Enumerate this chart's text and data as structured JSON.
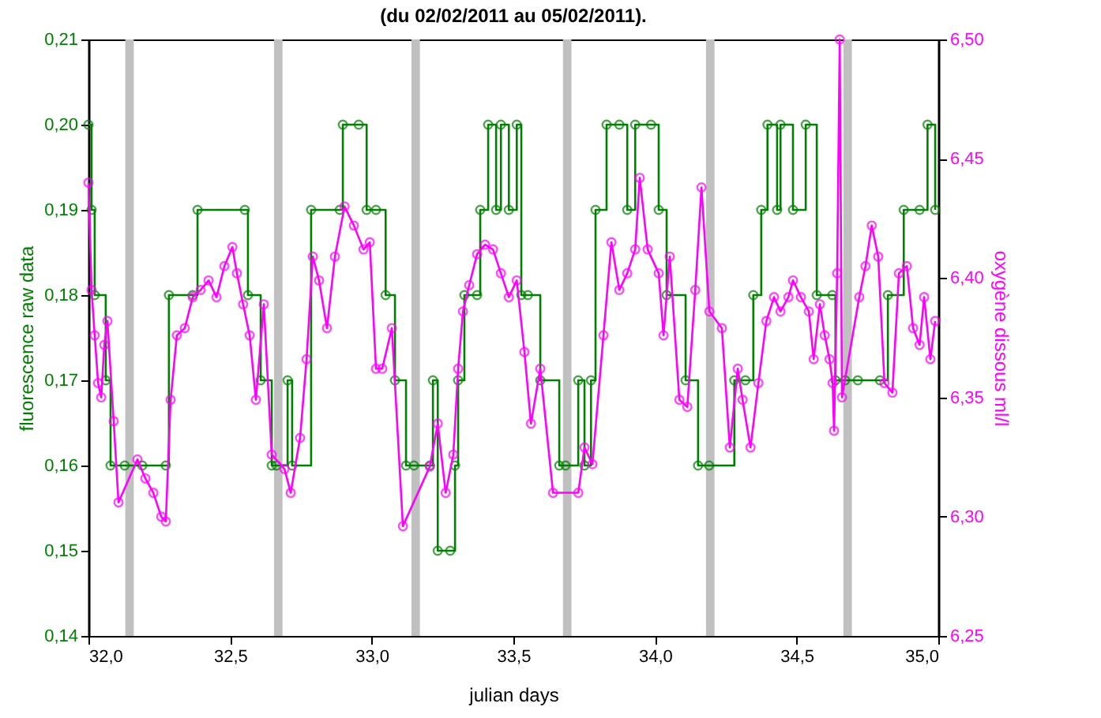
{
  "chart_data": {
    "type": "line",
    "title": "(du 02/02/2011 au 05/02/2011).",
    "xlabel": "julian days",
    "ylabel": "fluorescence raw data",
    "y2label": "oxygène dissous ml/l",
    "xlim": [
      32,
      35
    ],
    "xticks": [
      {
        "value": 32,
        "label": "32,0"
      },
      {
        "value": 32.5,
        "label": "32,5"
      },
      {
        "value": 33,
        "label": "33,0"
      },
      {
        "value": 33.5,
        "label": "33,5"
      },
      {
        "value": 34,
        "label": "34,0"
      },
      {
        "value": 34.5,
        "label": "34,5"
      },
      {
        "value": 35,
        "label": "35,0"
      }
    ],
    "ylim": [
      0.14,
      0.21
    ],
    "yticks": [
      {
        "value": 0.14,
        "label": "0,14"
      },
      {
        "value": 0.15,
        "label": "0,15"
      },
      {
        "value": 0.16,
        "label": "0,16"
      },
      {
        "value": 0.17,
        "label": "0,17"
      },
      {
        "value": 0.18,
        "label": "0,18"
      },
      {
        "value": 0.19,
        "label": "0,19"
      },
      {
        "value": 0.2,
        "label": "0,20"
      },
      {
        "value": 0.21,
        "label": "0,21"
      }
    ],
    "y2lim": [
      6.25,
      6.5
    ],
    "y2ticks": [
      {
        "value": 6.25,
        "label": "6,25"
      },
      {
        "value": 6.3,
        "label": "6,30"
      },
      {
        "value": 6.35,
        "label": "6,35"
      },
      {
        "value": 6.4,
        "label": "6,40"
      },
      {
        "value": 6.45,
        "label": "6,45"
      },
      {
        "value": 6.5,
        "label": "6,50"
      }
    ],
    "grid": false,
    "marker": "circle",
    "line_style": "solid",
    "bands": [
      {
        "axis": "x",
        "from": 32.13,
        "to": 32.16,
        "color": "#c0c0c0"
      },
      {
        "axis": "x",
        "from": 32.655,
        "to": 32.685,
        "color": "#c0c0c0"
      },
      {
        "axis": "x",
        "from": 33.14,
        "to": 33.17,
        "color": "#c0c0c0"
      },
      {
        "axis": "x",
        "from": 33.675,
        "to": 33.705,
        "color": "#c0c0c0"
      },
      {
        "axis": "x",
        "from": 34.18,
        "to": 34.21,
        "color": "#c0c0c0"
      },
      {
        "axis": "x",
        "from": 34.665,
        "to": 34.695,
        "color": "#c0c0c0"
      }
    ],
    "series": [
      {
        "color": "#008000",
        "type": "step",
        "x": [
          32.0,
          32.011,
          32.022,
          32.061,
          32.078,
          32.128,
          32.19,
          32.273,
          32.284,
          32.368,
          32.385,
          32.552,
          32.563,
          32.608,
          32.647,
          32.664,
          32.703,
          32.719,
          32.786,
          32.887,
          32.898,
          32.954,
          32.982,
          33.015,
          33.049,
          33.082,
          33.121,
          33.149,
          33.205,
          33.216,
          33.233,
          33.277,
          33.294,
          33.305,
          33.327,
          33.372,
          33.383,
          33.411,
          33.439,
          33.456,
          33.484,
          33.512,
          33.528,
          33.551,
          33.595,
          33.662,
          33.684,
          33.729,
          33.751,
          33.774,
          33.79,
          33.829,
          33.874,
          33.902,
          33.93,
          33.986,
          34.013,
          34.041,
          34.108,
          34.152,
          34.191,
          34.28,
          34.319,
          34.347,
          34.375,
          34.397,
          34.431,
          34.443,
          34.487,
          34.532,
          34.571,
          34.626,
          34.637,
          34.671,
          34.716,
          34.794,
          34.822,
          34.878,
          34.934,
          34.962,
          34.989
        ],
        "values": [
          0.2,
          0.19,
          0.18,
          0.17,
          0.16,
          0.16,
          0.16,
          0.16,
          0.18,
          0.18,
          0.19,
          0.19,
          0.18,
          0.17,
          0.16,
          0.16,
          0.17,
          0.16,
          0.19,
          0.19,
          0.2,
          0.2,
          0.19,
          0.19,
          0.18,
          0.17,
          0.16,
          0.16,
          0.16,
          0.17,
          0.15,
          0.15,
          0.16,
          0.17,
          0.18,
          0.18,
          0.19,
          0.2,
          0.19,
          0.2,
          0.19,
          0.2,
          0.18,
          0.18,
          0.17,
          0.16,
          0.16,
          0.17,
          0.16,
          0.17,
          0.19,
          0.2,
          0.2,
          0.19,
          0.2,
          0.2,
          0.19,
          0.18,
          0.17,
          0.16,
          0.16,
          0.17,
          0.17,
          0.18,
          0.19,
          0.2,
          0.19,
          0.2,
          0.19,
          0.2,
          0.18,
          0.18,
          0.17,
          0.17,
          0.17,
          0.17,
          0.18,
          0.19,
          0.19,
          0.2,
          0.19
        ]
      },
      {
        "color": "#ff00ff",
        "axis": "y2",
        "x": [
          32.0,
          32.011,
          32.022,
          32.034,
          32.045,
          32.056,
          32.067,
          32.089,
          32.106,
          32.173,
          32.201,
          32.229,
          32.257,
          32.273,
          32.29,
          32.312,
          32.34,
          32.368,
          32.396,
          32.424,
          32.452,
          32.48,
          32.508,
          32.524,
          32.546,
          32.569,
          32.591,
          32.619,
          32.647,
          32.692,
          32.714,
          32.747,
          32.77,
          32.792,
          32.814,
          32.842,
          32.87,
          32.904,
          32.937,
          32.971,
          32.993,
          33.015,
          33.037,
          33.071,
          33.11,
          33.205,
          33.233,
          33.261,
          33.288,
          33.305,
          33.322,
          33.344,
          33.372,
          33.4,
          33.428,
          33.456,
          33.484,
          33.512,
          33.539,
          33.562,
          33.595,
          33.64,
          33.729,
          33.751,
          33.779,
          33.818,
          33.846,
          33.874,
          33.902,
          33.93,
          33.946,
          33.974,
          34.013,
          34.03,
          34.052,
          34.086,
          34.114,
          34.142,
          34.164,
          34.192,
          34.236,
          34.264,
          34.292,
          34.309,
          34.337,
          34.365,
          34.393,
          34.42,
          34.443,
          34.471,
          34.487,
          34.515,
          34.543,
          34.56,
          34.582,
          34.599,
          34.616,
          34.627,
          34.632,
          34.643,
          34.652,
          34.66,
          34.721,
          34.743,
          34.765,
          34.788,
          34.81,
          34.838,
          34.861,
          34.889,
          34.911,
          34.934,
          34.95,
          34.972,
          34.989
        ],
        "values": [
          6.44,
          6.395,
          6.376,
          6.356,
          6.35,
          6.372,
          6.382,
          6.34,
          6.306,
          6.324,
          6.316,
          6.31,
          6.3,
          6.298,
          6.349,
          6.376,
          6.379,
          6.392,
          6.395,
          6.399,
          6.392,
          6.405,
          6.413,
          6.402,
          6.389,
          6.376,
          6.349,
          6.389,
          6.326,
          6.32,
          6.31,
          6.333,
          6.366,
          6.409,
          6.399,
          6.379,
          6.409,
          6.43,
          6.422,
          6.412,
          6.415,
          6.362,
          6.362,
          6.379,
          6.296,
          6.321,
          6.339,
          6.31,
          6.326,
          6.362,
          6.386,
          6.397,
          6.41,
          6.414,
          6.412,
          6.402,
          6.392,
          6.399,
          6.369,
          6.339,
          6.362,
          6.31,
          6.31,
          6.329,
          6.322,
          6.376,
          6.415,
          6.395,
          6.402,
          6.412,
          6.442,
          6.412,
          6.402,
          6.376,
          6.409,
          6.349,
          6.346,
          6.395,
          6.438,
          6.386,
          6.379,
          6.329,
          6.362,
          6.349,
          6.329,
          6.356,
          6.382,
          6.392,
          6.386,
          6.392,
          6.399,
          6.392,
          6.386,
          6.366,
          6.389,
          6.376,
          6.366,
          6.356,
          6.336,
          6.402,
          6.5,
          6.35,
          6.392,
          6.405,
          6.422,
          6.409,
          6.356,
          6.352,
          6.402,
          6.405,
          6.379,
          6.372,
          6.392,
          6.366,
          6.382
        ]
      }
    ]
  }
}
